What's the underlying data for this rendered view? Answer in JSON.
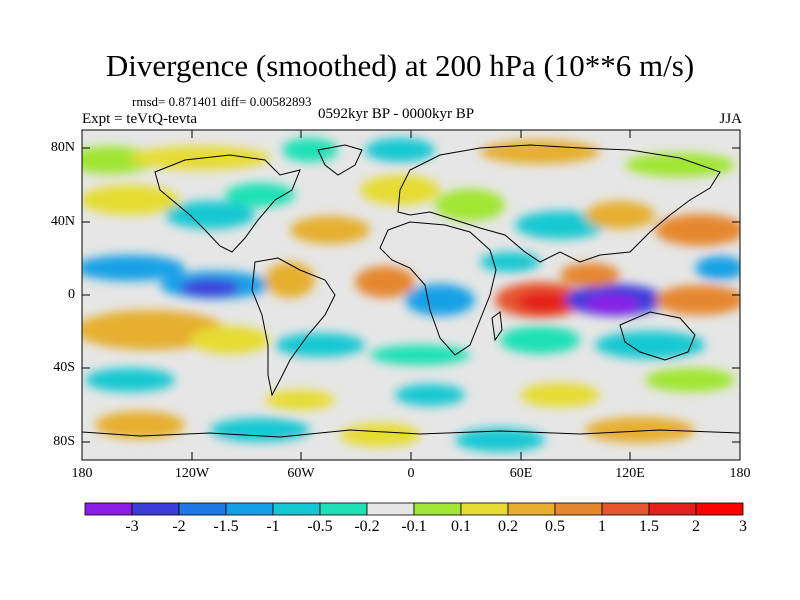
{
  "title": "Divergence (smoothed) at 200 hPa (10**6 m/s)",
  "stats": "rmsd= 0.871401 diff= 0.00582893",
  "experiment": "Expt = teVtQ-tevta",
  "period": "0592kyr BP - 0000kyr BP",
  "season": "JJA",
  "lat_labels": [
    "80N",
    "40N",
    "0",
    "40S",
    "80S"
  ],
  "lon_labels": [
    "180",
    "120W",
    "60W",
    "0",
    "60E",
    "120E",
    "180"
  ],
  "colorbar": {
    "labels": [
      "-3",
      "-2",
      "-1.5",
      "-1",
      "-0.5",
      "-0.2",
      "-0.1",
      "0.1",
      "0.2",
      "0.5",
      "1",
      "1.5",
      "2",
      "3"
    ],
    "colors": [
      "#8a1ee6",
      "#3c3cdc",
      "#1e78e6",
      "#14a0e6",
      "#14c8d2",
      "#1ee1b4",
      "#e6e6e6",
      "#a0e632",
      "#e6dc32",
      "#e6af2d",
      "#e6872d",
      "#e6552d",
      "#e61e1e",
      "#ff0000"
    ]
  },
  "icons": {
    "map": "world-coastline-map"
  }
}
